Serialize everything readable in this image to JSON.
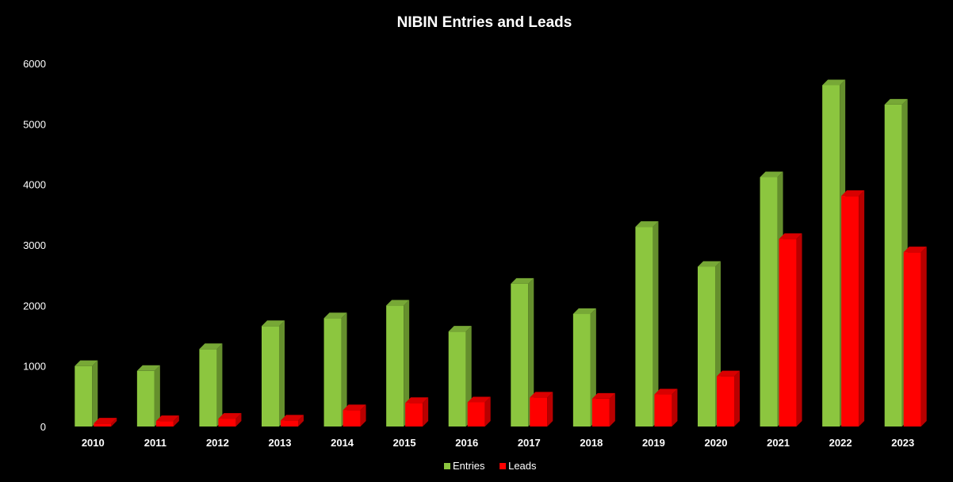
{
  "chart_data": {
    "type": "bar",
    "title": "NIBIN Entries and Leads",
    "xlabel": "",
    "ylabel": "",
    "categories": [
      "2010",
      "2011",
      "2012",
      "2013",
      "2014",
      "2015",
      "2016",
      "2017",
      "2018",
      "2019",
      "2020",
      "2021",
      "2022",
      "2023"
    ],
    "series": [
      {
        "name": "Entries",
        "color": "#8cc63f",
        "values": [
          1000,
          920,
          1280,
          1660,
          1790,
          2000,
          1570,
          2360,
          1860,
          3300,
          2640,
          4120,
          5640,
          5320
        ]
      },
      {
        "name": "Leads",
        "color": "#ff0000",
        "values": [
          50,
          90,
          130,
          100,
          270,
          390,
          400,
          480,
          460,
          530,
          830,
          3100,
          3810,
          2880
        ]
      }
    ],
    "ylim": [
      0,
      6000
    ],
    "yticks": [
      0,
      1000,
      2000,
      3000,
      4000,
      5000,
      6000
    ],
    "grid": false,
    "legend": "bottom"
  }
}
